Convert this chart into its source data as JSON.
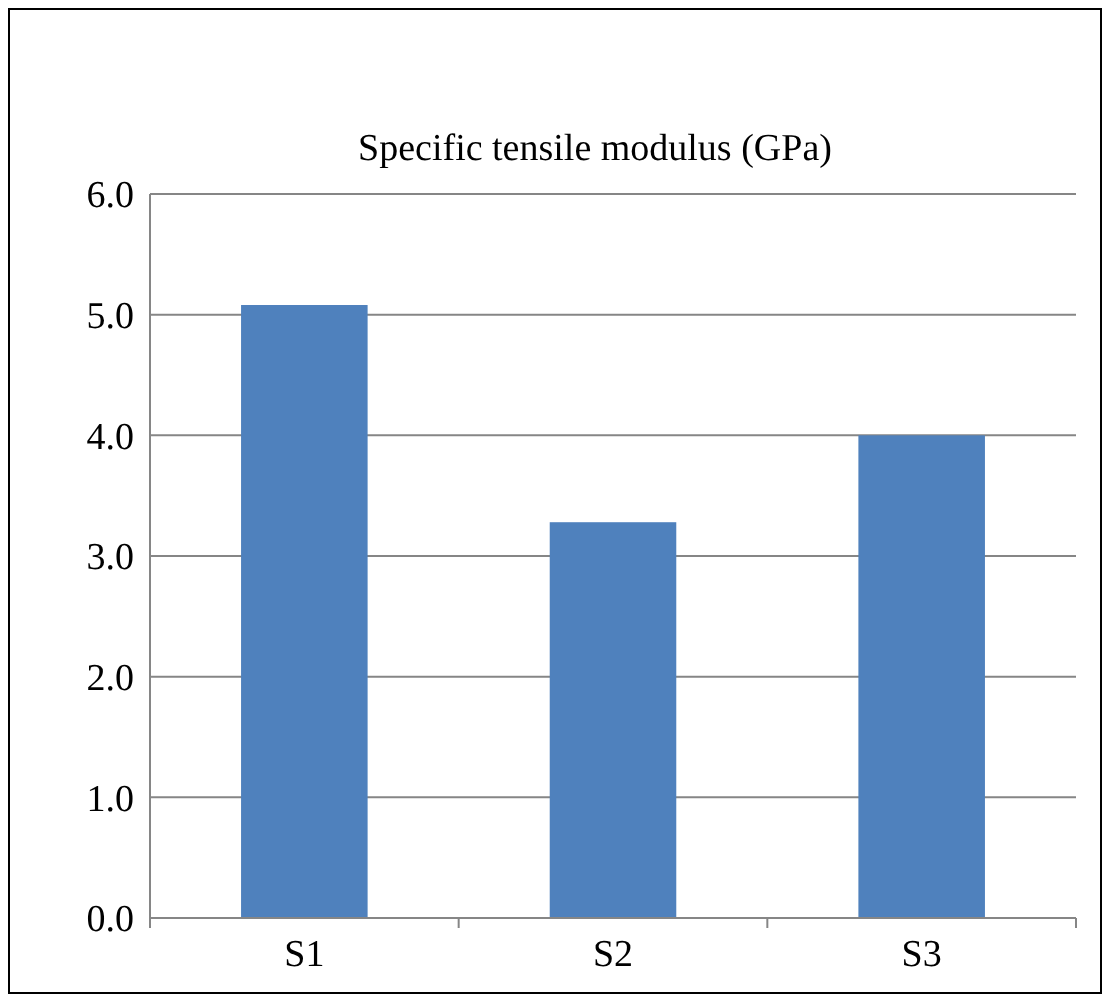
{
  "chart_data": {
    "type": "bar",
    "title": "Specific tensile modulus (GPa)",
    "categories": [
      "S1",
      "S2",
      "S3"
    ],
    "values": [
      5.08,
      3.28,
      4.0
    ],
    "color": "#4f81bd",
    "ylim": [
      0,
      6
    ],
    "yticks": [
      {
        "value": 0,
        "label": "0.0"
      },
      {
        "value": 1,
        "label": "1.0"
      },
      {
        "value": 2,
        "label": "2.0"
      },
      {
        "value": 3,
        "label": "3.0"
      },
      {
        "value": 4,
        "label": "4.0"
      },
      {
        "value": 5,
        "label": "5.0"
      },
      {
        "value": 6,
        "label": "6.0"
      }
    ],
    "grid": "y"
  }
}
